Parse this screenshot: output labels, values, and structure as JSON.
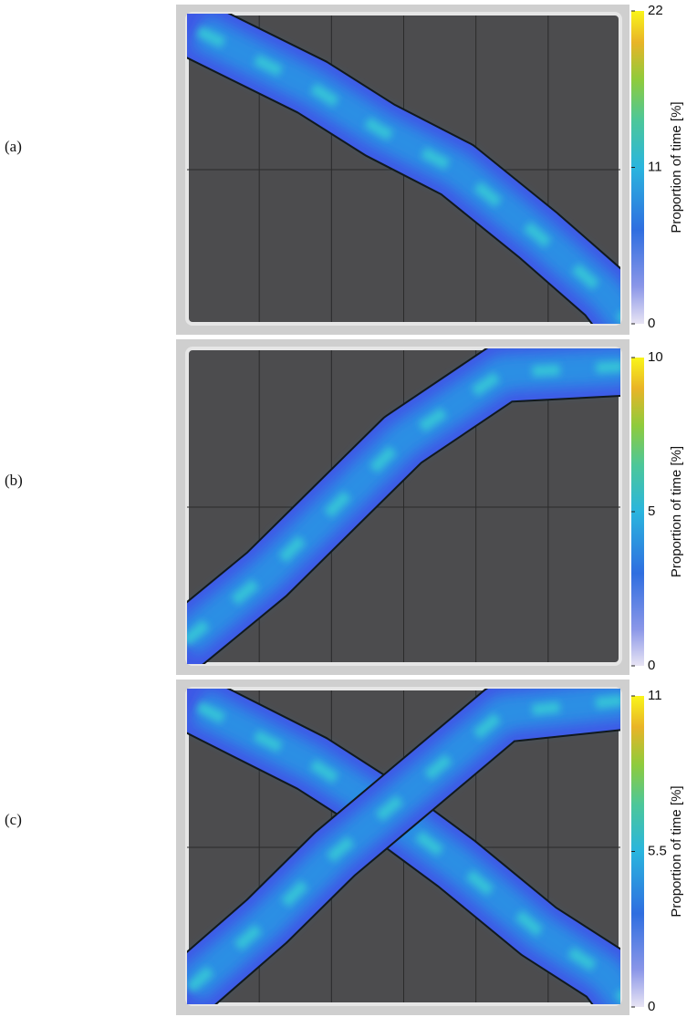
{
  "chart_data": [
    {
      "type": "heatmap",
      "label": "(a)",
      "colorbar_label": "Proportion of time [%]",
      "zlim": [
        0,
        22
      ],
      "zticks": [
        0,
        11,
        22
      ]
    },
    {
      "type": "heatmap",
      "label": "(b)",
      "colorbar_label": "Proportion of time [%]",
      "zlim": [
        0,
        10
      ],
      "zticks": [
        0,
        5,
        10
      ]
    },
    {
      "type": "heatmap",
      "label": "(c)",
      "colorbar_label": "Proportion of time [%]",
      "zlim": [
        0,
        11
      ],
      "zticks": [
        0,
        {
          "value": 5.5,
          "label": "5.5"
        },
        11
      ]
    }
  ]
}
